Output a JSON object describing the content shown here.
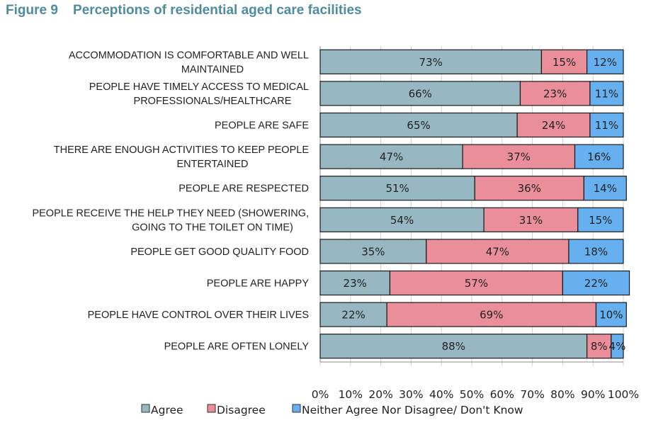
{
  "title": "Figure 9    Perceptions of residential aged care facilities",
  "chart_data": {
    "type": "bar",
    "orientation": "horizontal",
    "stacked": true,
    "title": "Figure 9    Perceptions of residential aged care facilities",
    "categories": [
      [
        "ACCOMMODATION IS COMFORTABLE AND WELL",
        "MAINTAINED"
      ],
      [
        "PEOPLE HAVE TIMELY ACCESS TO MEDICAL",
        "PROFESSIONALS/HEALTHCARE"
      ],
      [
        "PEOPLE ARE SAFE"
      ],
      [
        "THERE ARE ENOUGH ACTIVITIES TO KEEP PEOPLE",
        "ENTERTAINED"
      ],
      [
        "PEOPLE ARE RESPECTED"
      ],
      [
        "PEOPLE RECEIVE THE HELP THEY NEED (SHOWERING,",
        "GOING TO THE TOILET ON TIME)"
      ],
      [
        "PEOPLE GET GOOD QUALITY FOOD"
      ],
      [
        "PEOPLE ARE HAPPY"
      ],
      [
        "PEOPLE HAVE CONTROL OVER THEIR LIVES"
      ],
      [
        "PEOPLE ARE OFTEN LONELY"
      ]
    ],
    "series": [
      {
        "name": "Agree",
        "color": "#97b7c3",
        "values": [
          73,
          66,
          65,
          47,
          51,
          54,
          35,
          23,
          22,
          88
        ]
      },
      {
        "name": "Disagree",
        "color": "#ea8f99",
        "values": [
          15,
          23,
          24,
          37,
          36,
          31,
          47,
          57,
          69,
          8
        ]
      },
      {
        "name": "Neither Agree Nor Disagree/ Don't Know",
        "color": "#66b0ef",
        "values": [
          12,
          11,
          11,
          16,
          14,
          15,
          18,
          22,
          10,
          4
        ]
      }
    ],
    "xlim": [
      0,
      100
    ],
    "xticks": [
      "0%",
      "10%",
      "20%",
      "30%",
      "40%",
      "50%",
      "60%",
      "70%",
      "80%",
      "90%",
      "100%"
    ],
    "grid": true,
    "legend": "bottom"
  }
}
